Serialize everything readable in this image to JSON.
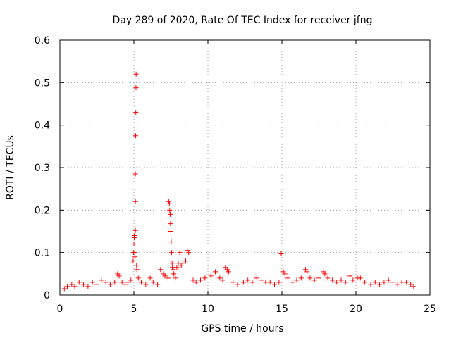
{
  "chart_data": {
    "type": "scatter",
    "title": "Day 289 of 2020, Rate Of TEC Index for receiver jfng",
    "xlabel": "GPS time / hours",
    "ylabel": "ROTI / TECUs",
    "xlim": [
      0,
      25
    ],
    "ylim": [
      0,
      0.6
    ],
    "xticks": [
      0,
      5,
      10,
      15,
      20,
      25
    ],
    "yticks": [
      0,
      0.1,
      0.2,
      0.3,
      0.4,
      0.5,
      0.6
    ],
    "xtick_labels": [
      "0",
      "5",
      "10",
      "15",
      "20",
      "25"
    ],
    "ytick_labels": [
      "0",
      "0.1",
      "0.2",
      "0.3",
      "0.4",
      "0.5",
      "0.6"
    ],
    "grid": true,
    "marker": "plus",
    "series": [
      {
        "color": "#ff0000",
        "points": [
          [
            0.3,
            0.015
          ],
          [
            0.5,
            0.02
          ],
          [
            0.8,
            0.025
          ],
          [
            1.0,
            0.02
          ],
          [
            1.3,
            0.03
          ],
          [
            1.6,
            0.025
          ],
          [
            1.9,
            0.02
          ],
          [
            2.2,
            0.03
          ],
          [
            2.5,
            0.025
          ],
          [
            2.8,
            0.035
          ],
          [
            3.1,
            0.03
          ],
          [
            3.4,
            0.025
          ],
          [
            3.7,
            0.03
          ],
          [
            3.9,
            0.05
          ],
          [
            4.0,
            0.045
          ],
          [
            4.2,
            0.03
          ],
          [
            4.4,
            0.025
          ],
          [
            4.6,
            0.03
          ],
          [
            4.8,
            0.035
          ],
          [
            4.95,
            0.08
          ],
          [
            4.98,
            0.1
          ],
          [
            5.0,
            0.12
          ],
          [
            5.02,
            0.135
          ],
          [
            5.04,
            0.14
          ],
          [
            5.06,
            0.1
          ],
          [
            5.08,
            0.09
          ],
          [
            5.1,
            0.152
          ],
          [
            5.1,
            0.22
          ],
          [
            5.1,
            0.285
          ],
          [
            5.12,
            0.375
          ],
          [
            5.13,
            0.43
          ],
          [
            5.14,
            0.488
          ],
          [
            5.15,
            0.52
          ],
          [
            5.18,
            0.07
          ],
          [
            5.2,
            0.06
          ],
          [
            5.3,
            0.04
          ],
          [
            5.5,
            0.03
          ],
          [
            5.8,
            0.025
          ],
          [
            6.1,
            0.04
          ],
          [
            6.3,
            0.03
          ],
          [
            6.6,
            0.025
          ],
          [
            6.8,
            0.06
          ],
          [
            7.0,
            0.05
          ],
          [
            7.1,
            0.045
          ],
          [
            7.3,
            0.04
          ],
          [
            7.35,
            0.22
          ],
          [
            7.4,
            0.215
          ],
          [
            7.42,
            0.2
          ],
          [
            7.45,
            0.19
          ],
          [
            7.47,
            0.168
          ],
          [
            7.5,
            0.15
          ],
          [
            7.52,
            0.125
          ],
          [
            7.55,
            0.1
          ],
          [
            7.58,
            0.075
          ],
          [
            7.6,
            0.065
          ],
          [
            7.65,
            0.06
          ],
          [
            7.7,
            0.05
          ],
          [
            7.8,
            0.04
          ],
          [
            7.9,
            0.065
          ],
          [
            8.0,
            0.075
          ],
          [
            8.1,
            0.1
          ],
          [
            8.2,
            0.07
          ],
          [
            8.3,
            0.075
          ],
          [
            8.5,
            0.08
          ],
          [
            8.6,
            0.105
          ],
          [
            8.7,
            0.1
          ],
          [
            9.0,
            0.035
          ],
          [
            9.2,
            0.03
          ],
          [
            9.5,
            0.035
          ],
          [
            9.8,
            0.04
          ],
          [
            10.2,
            0.045
          ],
          [
            10.5,
            0.055
          ],
          [
            10.8,
            0.04
          ],
          [
            11.0,
            0.035
          ],
          [
            11.2,
            0.065
          ],
          [
            11.3,
            0.06
          ],
          [
            11.4,
            0.055
          ],
          [
            11.7,
            0.03
          ],
          [
            12.0,
            0.025
          ],
          [
            12.4,
            0.03
          ],
          [
            12.7,
            0.035
          ],
          [
            13.0,
            0.03
          ],
          [
            13.3,
            0.04
          ],
          [
            13.6,
            0.035
          ],
          [
            13.9,
            0.03
          ],
          [
            14.2,
            0.03
          ],
          [
            14.5,
            0.025
          ],
          [
            14.8,
            0.03
          ],
          [
            14.95,
            0.097
          ],
          [
            15.1,
            0.055
          ],
          [
            15.2,
            0.05
          ],
          [
            15.4,
            0.04
          ],
          [
            15.7,
            0.03
          ],
          [
            16.0,
            0.035
          ],
          [
            16.3,
            0.04
          ],
          [
            16.6,
            0.06
          ],
          [
            16.7,
            0.055
          ],
          [
            16.9,
            0.04
          ],
          [
            17.2,
            0.035
          ],
          [
            17.5,
            0.04
          ],
          [
            17.8,
            0.055
          ],
          [
            17.9,
            0.05
          ],
          [
            18.1,
            0.04
          ],
          [
            18.4,
            0.035
          ],
          [
            18.7,
            0.03
          ],
          [
            19.0,
            0.035
          ],
          [
            19.3,
            0.03
          ],
          [
            19.6,
            0.045
          ],
          [
            19.8,
            0.035
          ],
          [
            20.1,
            0.04
          ],
          [
            20.3,
            0.04
          ],
          [
            20.6,
            0.03
          ],
          [
            21.0,
            0.025
          ],
          [
            21.3,
            0.03
          ],
          [
            21.6,
            0.025
          ],
          [
            21.9,
            0.03
          ],
          [
            22.2,
            0.035
          ],
          [
            22.5,
            0.03
          ],
          [
            22.8,
            0.025
          ],
          [
            23.1,
            0.03
          ],
          [
            23.4,
            0.03
          ],
          [
            23.7,
            0.025
          ],
          [
            23.9,
            0.02
          ]
        ]
      }
    ]
  }
}
